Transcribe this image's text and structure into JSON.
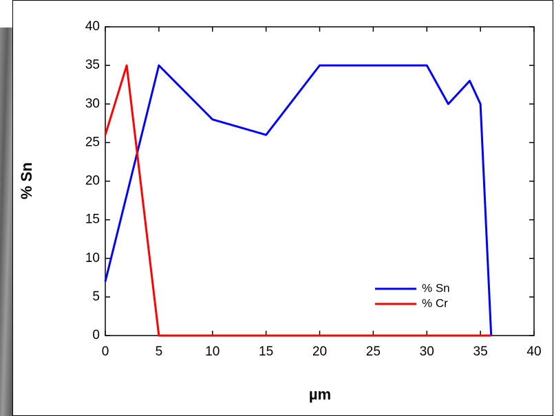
{
  "chart_data": {
    "type": "line",
    "xlabel": "µm",
    "ylabel": "% Sn",
    "xlim": [
      0,
      40
    ],
    "xticks": [
      0,
      5,
      10,
      15,
      20,
      25,
      30,
      35,
      40
    ],
    "ylim": [
      0,
      40
    ],
    "yticks": [
      0,
      5,
      10,
      15,
      20,
      25,
      30,
      35,
      40
    ],
    "legend": "lower right",
    "series": [
      {
        "name": "% Sn",
        "color": "#0000ff",
        "x": [
          0,
          5,
          10,
          15,
          20,
          30,
          32,
          34,
          35,
          36
        ],
        "values": [
          7,
          35,
          28,
          26,
          35,
          35,
          30,
          33,
          30,
          0
        ]
      },
      {
        "name": "% Cr",
        "color": "#ff0000",
        "x": [
          0,
          2,
          5,
          36
        ],
        "values": [
          26,
          35,
          0,
          0
        ]
      }
    ]
  }
}
